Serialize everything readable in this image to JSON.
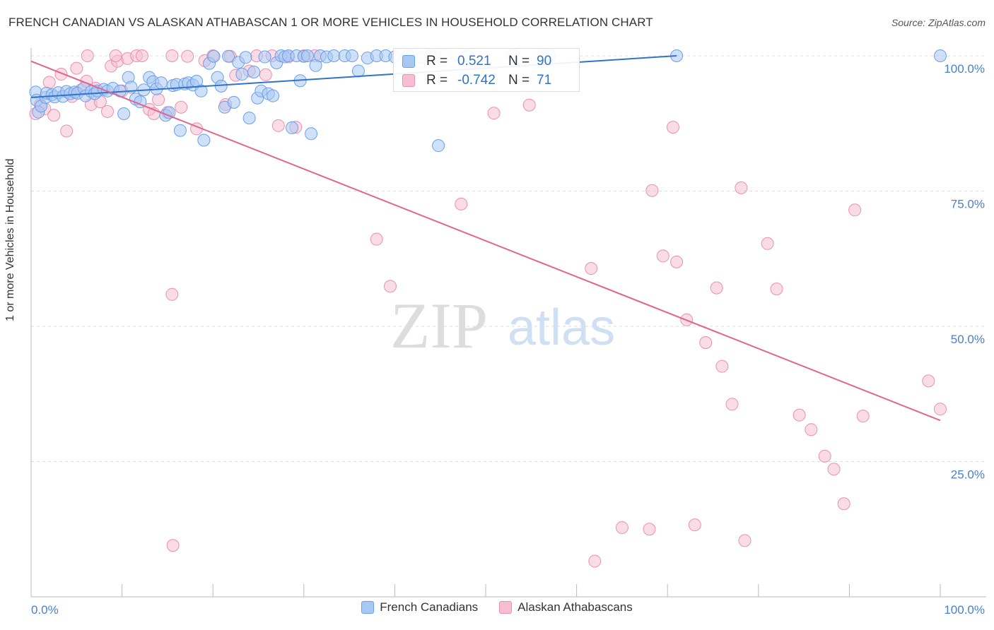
{
  "title": "FRENCH CANADIAN VS ALASKAN ATHABASCAN 1 OR MORE VEHICLES IN HOUSEHOLD CORRELATION CHART",
  "source": "Source: ZipAtlas.com",
  "watermark": {
    "zip": "ZIP",
    "atlas": "atlas"
  },
  "colors": {
    "blue": "#6d9eeb",
    "blue_fill": "#a8c8f4",
    "blue_line": "#2f74c8",
    "pink": "#ec8fb0",
    "pink_fill": "#f5bfd1",
    "pink_line": "#e0668f",
    "axis_text": "#4a7fcf",
    "grid": "#dcdcdc"
  },
  "stats": {
    "blue": {
      "r_label": "R =",
      "r_value": "0.521",
      "n_label": "N =",
      "n_value": "90"
    },
    "pink": {
      "r_label": "R =",
      "r_value": "-0.742",
      "n_label": "N =",
      "n_value": "71"
    }
  },
  "chart_data": {
    "type": "scatter",
    "title": "FRENCH CANADIAN VS ALASKAN ATHABASCAN 1 OR MORE VEHICLES IN HOUSEHOLD CORRELATION CHART",
    "xlabel": "",
    "ylabel": "1 or more Vehicles in Household",
    "xlim": [
      0,
      100
    ],
    "ylim": [
      0,
      100
    ],
    "x_tick_labels": [
      "0.0%",
      "100.0%"
    ],
    "y_ticks": [
      25,
      50,
      75,
      100
    ],
    "y_tick_labels": [
      "25.0%",
      "50.0%",
      "75.0%",
      "100.0%"
    ],
    "grid": true,
    "legend": [
      "French Canadians",
      "Alaskan Athabascans"
    ],
    "series": [
      {
        "name": "French Canadians",
        "color": "#6d9eeb",
        "trend": {
          "x": [
            0,
            71
          ],
          "y": [
            92.3,
            100
          ]
        },
        "points": [
          [
            0.5,
            93.3
          ],
          [
            0.6,
            91.8
          ],
          [
            0.8,
            89.6
          ],
          [
            1.1,
            90.7
          ],
          [
            1.6,
            92.3
          ],
          [
            1.7,
            93.1
          ],
          [
            2.3,
            92.8
          ],
          [
            2.6,
            92.4
          ],
          [
            3.0,
            93.2
          ],
          [
            3.5,
            92.5
          ],
          [
            3.9,
            93.4
          ],
          [
            4.3,
            93.0
          ],
          [
            4.8,
            93.3
          ],
          [
            5.1,
            93.1
          ],
          [
            5.8,
            94.0
          ],
          [
            6.0,
            92.6
          ],
          [
            6.6,
            93.4
          ],
          [
            7.0,
            93.0
          ],
          [
            7.3,
            93.5
          ],
          [
            8.0,
            93.8
          ],
          [
            8.4,
            93.5
          ],
          [
            9.0,
            94.0
          ],
          [
            9.8,
            93.5
          ],
          [
            10.2,
            89.3
          ],
          [
            10.7,
            96.0
          ],
          [
            11.0,
            94.2
          ],
          [
            11.5,
            92.0
          ],
          [
            12.0,
            91.5
          ],
          [
            12.4,
            93.7
          ],
          [
            13.0,
            96.0
          ],
          [
            13.4,
            95.2
          ],
          [
            13.8,
            93.9
          ],
          [
            14.3,
            95.0
          ],
          [
            14.8,
            89.0
          ],
          [
            15.2,
            89.5
          ],
          [
            15.6,
            94.5
          ],
          [
            16.0,
            94.7
          ],
          [
            16.4,
            86.2
          ],
          [
            16.9,
            94.8
          ],
          [
            17.3,
            95.0
          ],
          [
            17.8,
            94.6
          ],
          [
            18.2,
            95.3
          ],
          [
            18.7,
            93.5
          ],
          [
            19.0,
            84.4
          ],
          [
            19.6,
            98.6
          ],
          [
            20.1,
            99.9
          ],
          [
            20.5,
            96.0
          ],
          [
            20.9,
            94.4
          ],
          [
            21.3,
            90.5
          ],
          [
            21.7,
            99.9
          ],
          [
            22.3,
            91.4
          ],
          [
            22.8,
            98.8
          ],
          [
            23.2,
            96.6
          ],
          [
            23.6,
            99.7
          ],
          [
            24.0,
            88.5
          ],
          [
            24.5,
            97.0
          ],
          [
            24.9,
            92.2
          ],
          [
            25.3,
            93.5
          ],
          [
            25.7,
            99.8
          ],
          [
            26.1,
            93.0
          ],
          [
            26.6,
            92.6
          ],
          [
            27.0,
            98.7
          ],
          [
            27.5,
            100
          ],
          [
            27.9,
            99.8
          ],
          [
            28.3,
            100
          ],
          [
            28.7,
            86.7
          ],
          [
            29.2,
            100
          ],
          [
            29.6,
            95.4
          ],
          [
            30.0,
            99.9
          ],
          [
            30.4,
            100
          ],
          [
            30.8,
            85.6
          ],
          [
            31.3,
            98.2
          ],
          [
            31.8,
            100
          ],
          [
            32.5,
            99.8
          ],
          [
            33.3,
            100
          ],
          [
            34.5,
            100
          ],
          [
            35.3,
            100
          ],
          [
            36.0,
            97.2
          ],
          [
            37.0,
            99.6
          ],
          [
            38.0,
            100
          ],
          [
            39.0,
            100
          ],
          [
            40.0,
            99.8
          ],
          [
            41.5,
            100
          ],
          [
            43.0,
            99.7
          ],
          [
            44.0,
            100
          ],
          [
            48.0,
            100
          ],
          [
            53.0,
            100
          ],
          [
            57.0,
            100
          ],
          [
            71.0,
            100
          ],
          [
            100.0,
            100
          ],
          [
            44.8,
            83.4
          ]
        ]
      },
      {
        "name": "Alaskan Athabascans",
        "color": "#ec8fb0",
        "trend": {
          "x": [
            0,
            100
          ],
          "y": [
            99,
            32.6
          ]
        },
        "points": [
          [
            0.5,
            89.3
          ],
          [
            1.0,
            91.0
          ],
          [
            1.5,
            90.2
          ],
          [
            2.0,
            95.1
          ],
          [
            2.5,
            89.0
          ],
          [
            3.3,
            96.6
          ],
          [
            3.9,
            86.1
          ],
          [
            4.5,
            92.5
          ],
          [
            5.0,
            97.7
          ],
          [
            5.5,
            93.7
          ],
          [
            6.1,
            95.3
          ],
          [
            6.6,
            91.0
          ],
          [
            7.1,
            94.0
          ],
          [
            7.6,
            91.5
          ],
          [
            8.4,
            89.7
          ],
          [
            8.8,
            98.1
          ],
          [
            9.5,
            99.0
          ],
          [
            10.0,
            93.5
          ],
          [
            10.6,
            99.5
          ],
          [
            11.6,
            100
          ],
          [
            13.0,
            90.1
          ],
          [
            13.5,
            89.3
          ],
          [
            14.0,
            91.9
          ],
          [
            15.0,
            89.5
          ],
          [
            15.5,
            100
          ],
          [
            16.5,
            90.5
          ],
          [
            17.2,
            99.9
          ],
          [
            18.2,
            86.5
          ],
          [
            19.1,
            99.1
          ],
          [
            20.0,
            100
          ],
          [
            21.4,
            91.0
          ],
          [
            21.9,
            99.9
          ],
          [
            22.5,
            96.4
          ],
          [
            24.0,
            97.2
          ],
          [
            24.8,
            100
          ],
          [
            25.8,
            96.5
          ],
          [
            26.5,
            100
          ],
          [
            27.2,
            87.1
          ],
          [
            28.3,
            99.8
          ],
          [
            29.1,
            86.8
          ],
          [
            30.0,
            100
          ],
          [
            31.2,
            100
          ],
          [
            9.3,
            100
          ],
          [
            6.2,
            100
          ],
          [
            12.2,
            100
          ],
          [
            38.0,
            66.1
          ],
          [
            39.5,
            57.4
          ],
          [
            44.4,
            99.9
          ],
          [
            45.6,
            100
          ],
          [
            47.3,
            72.6
          ],
          [
            50.9,
            89.4
          ],
          [
            54.8,
            90.9
          ],
          [
            56.4,
            99.9
          ],
          [
            61.6,
            60.7
          ],
          [
            68.3,
            75.1
          ],
          [
            69.5,
            63.0
          ],
          [
            70.6,
            86.8
          ],
          [
            71.0,
            61.9
          ],
          [
            72.1,
            51.2
          ],
          [
            74.2,
            47.0
          ],
          [
            75.4,
            57.1
          ],
          [
            76.0,
            42.6
          ],
          [
            77.1,
            35.6
          ],
          [
            78.1,
            75.6
          ],
          [
            81.0,
            65.3
          ],
          [
            82.0,
            56.9
          ],
          [
            84.5,
            33.6
          ],
          [
            85.8,
            30.9
          ],
          [
            87.3,
            26.0
          ],
          [
            88.3,
            23.6
          ],
          [
            89.4,
            17.2
          ],
          [
            90.6,
            71.5
          ],
          [
            91.5,
            33.4
          ],
          [
            98.7,
            39.9
          ],
          [
            100.0,
            34.7
          ],
          [
            15.5,
            55.9
          ],
          [
            15.6,
            9.5
          ],
          [
            62.0,
            6.6
          ],
          [
            68.0,
            12.5
          ],
          [
            73.0,
            13.3
          ],
          [
            65.0,
            12.8
          ],
          [
            78.5,
            10.4
          ]
        ]
      }
    ]
  }
}
